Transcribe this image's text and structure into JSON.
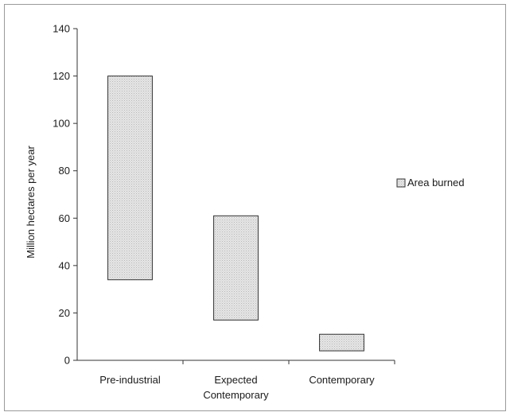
{
  "chart_data": {
    "type": "bar",
    "subtype": "floating-range",
    "title": "",
    "xlabel": "",
    "ylabel": "Million hectares per year",
    "ylim": [
      0,
      140
    ],
    "yticks": [
      0,
      20,
      40,
      60,
      80,
      100,
      120,
      140
    ],
    "grid": false,
    "legend_position": "right",
    "categories": [
      [
        "Pre-industrial"
      ],
      [
        "Expected",
        "Contemporary"
      ],
      [
        "Contemporary"
      ]
    ],
    "series": [
      {
        "name": "Area burned",
        "ranges": [
          [
            34,
            120
          ],
          [
            17,
            61
          ],
          [
            4,
            11
          ]
        ],
        "color": "#e4e4e4",
        "pattern": "fine-dots"
      }
    ]
  }
}
